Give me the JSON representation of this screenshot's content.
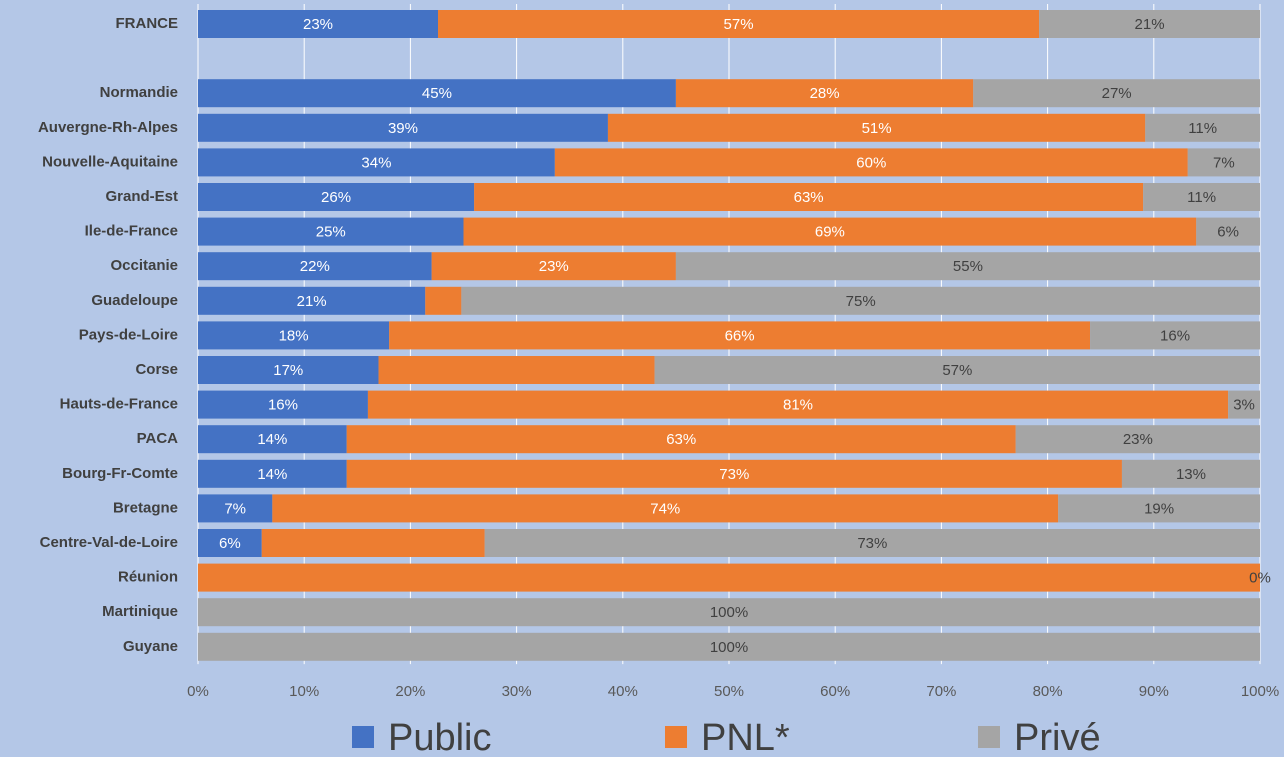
{
  "chart_data": {
    "type": "stacked-barh",
    "categories": [
      "FRANCE",
      null,
      "Normandie",
      "Auvergne-Rh-Alpes",
      "Nouvelle-Aquitaine",
      "Grand-Est",
      "Ile-de-France",
      "Occitanie",
      "Guadeloupe",
      "Pays-de-Loire",
      "Corse",
      "Hauts-de-France",
      "PACA",
      "Bourg-Fr-Comte",
      "Bretagne",
      "Centre-Val-de-Loire",
      "Réunion",
      "Martinique",
      "Guyane"
    ],
    "series": [
      {
        "name": "Public",
        "color": "#4472c4",
        "label_color": "#ffffff",
        "values": [
          22.6,
          null,
          45,
          38.6,
          33.6,
          26,
          25,
          22,
          21.4,
          18,
          17,
          16,
          14,
          14,
          7,
          6,
          0,
          0,
          0
        ],
        "value_labels": [
          "23%",
          null,
          "45%",
          "39%",
          "34%",
          "26%",
          "25%",
          "22%",
          "21%",
          "18%",
          "17%",
          "16%",
          "14%",
          "14%",
          "7%",
          "6%",
          null,
          null,
          null
        ]
      },
      {
        "name": "PNL*",
        "color": "#ed7d31",
        "label_color": "#ffffff",
        "values": [
          56.6,
          null,
          28,
          50.6,
          59.6,
          63,
          69,
          23,
          3.4,
          66,
          26,
          81,
          63,
          73,
          74,
          21,
          100,
          0,
          0
        ],
        "value_labels": [
          "57%",
          null,
          "28%",
          "51%",
          "60%",
          "63%",
          "69%",
          "23%",
          null,
          "66%",
          null,
          "81%",
          "63%",
          "73%",
          "74%",
          null,
          null,
          null,
          null
        ]
      },
      {
        "name": "Privé",
        "color": "#a5a5a5",
        "label_color": "#404040",
        "values": [
          20.8,
          null,
          27,
          10.8,
          6.8,
          11,
          6,
          55,
          75.2,
          16,
          57,
          3,
          23,
          13,
          19,
          73,
          0,
          100,
          100
        ],
        "value_labels": [
          "21%",
          null,
          "27%",
          "11%",
          "7%",
          "11%",
          "6%",
          "55%",
          "75%",
          "16%",
          "57%",
          "3%",
          "23%",
          "13%",
          "19%",
          "73%",
          "0%",
          "100%",
          "100%"
        ]
      }
    ],
    "xlim": [
      0,
      100
    ],
    "xticks": [
      {
        "value": 0,
        "label": "0%"
      },
      {
        "value": 10,
        "label": "10%"
      },
      {
        "value": 20,
        "label": "20%"
      },
      {
        "value": 30,
        "label": "30%"
      },
      {
        "value": 40,
        "label": "40%"
      },
      {
        "value": 50,
        "label": "50%"
      },
      {
        "value": 60,
        "label": "60%"
      },
      {
        "value": 70,
        "label": "70%"
      },
      {
        "value": 80,
        "label": "80%"
      },
      {
        "value": 90,
        "label": "90%"
      },
      {
        "value": 100,
        "label": "100%"
      }
    ],
    "grid": true,
    "legend": "bottom"
  }
}
